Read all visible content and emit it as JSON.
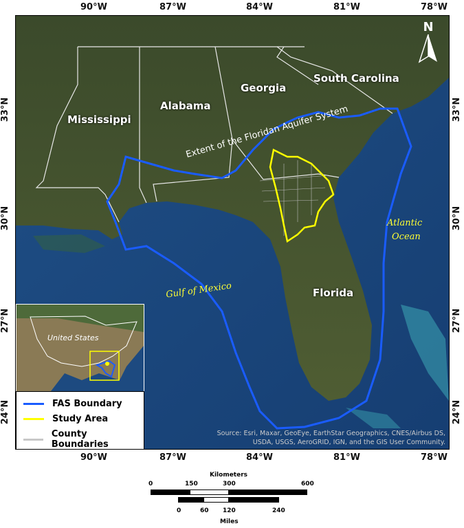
{
  "graticule": {
    "longitudes": [
      "90°W",
      "87°W",
      "84°W",
      "81°W",
      "78°W"
    ],
    "latitudes": [
      "33°N",
      "30°N",
      "27°N",
      "24°N"
    ]
  },
  "north_arrow": "N",
  "states": [
    "Mississippi",
    "Alabama",
    "Georgia",
    "South Carolina",
    "Florida"
  ],
  "water_labels": {
    "gulf": "Gulf of Mexico",
    "atlantic_line1": "Atlantic",
    "atlantic_line2": "Ocean"
  },
  "extent_label": "Extent of the Floridan Aquifer System",
  "inset": {
    "label": "United States"
  },
  "legend": [
    {
      "label": "FAS Boundary",
      "color": "#1a5cff"
    },
    {
      "label": "Study Area",
      "color": "#ffff00"
    },
    {
      "label": "County Boundaries",
      "color": "#c8c8c8"
    }
  ],
  "source": {
    "line1": "Source: Esri, Maxar, GeoEye, EarthStar Geographics, CNES/Airbus DS,",
    "line2": "USDA, USGS, AeroGRID, IGN, and the GIS User Community."
  },
  "scalebar": {
    "km_title": "Kilometers",
    "km_ticks": [
      "0",
      "150",
      "300",
      "600"
    ],
    "mi_title": "Miles",
    "mi_ticks": [
      "0",
      "60",
      "120",
      "240"
    ]
  }
}
